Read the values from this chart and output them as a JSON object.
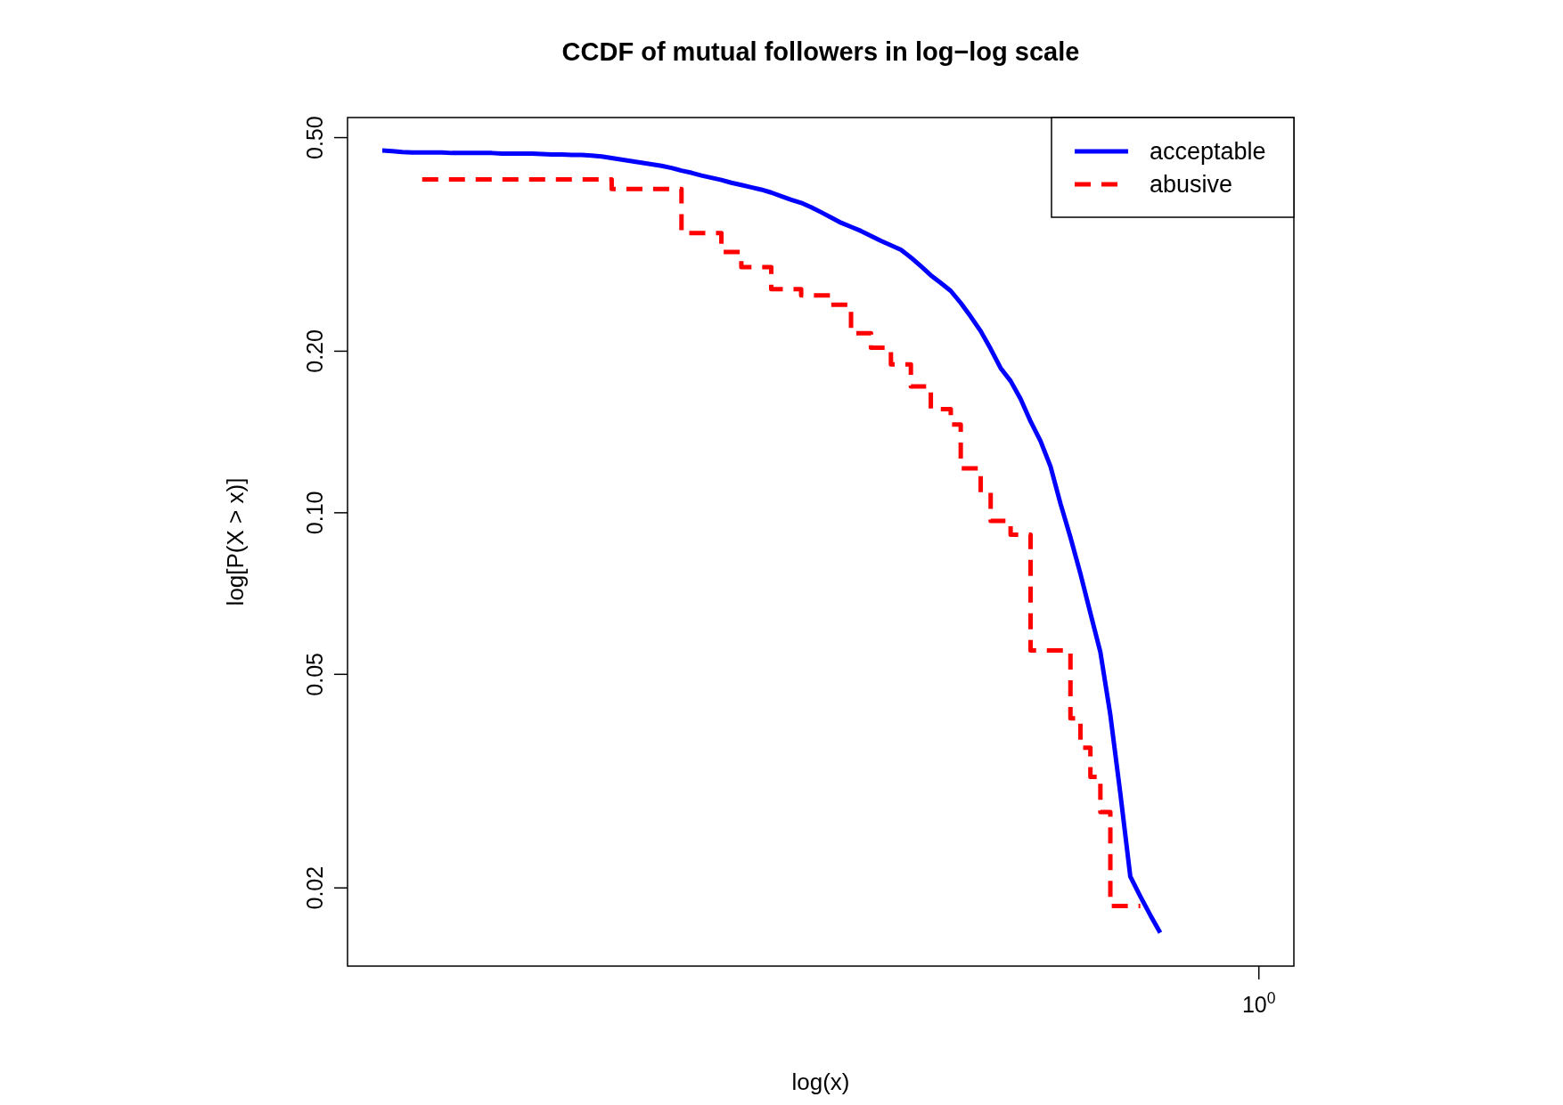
{
  "chart_data": {
    "type": "line",
    "title": "CCDF of mutual followers in log−log scale",
    "xlabel": "log(x)",
    "ylabel": "log[P(X > x)]",
    "log": "y",
    "tick_labels": "y",
    "annotations": [
      "10$^{0}$"
    ],
    "ylim": [
      0.0143,
      0.545
    ],
    "yticks": [
      {
        "value": 0.5,
        "label": "0.50"
      },
      {
        "value": 0.2,
        "label": "0.20"
      },
      {
        "value": 0.1,
        "label": "0.10"
      },
      {
        "value": 0.05,
        "label": "0.05"
      },
      {
        "value": 0.02,
        "label": "0.02"
      }
    ],
    "legend": "top right",
    "categories": [
      null,
      null,
      null,
      null,
      null,
      null,
      null,
      null,
      null,
      null,
      null,
      null,
      null,
      null,
      null,
      null,
      null,
      null,
      null,
      null,
      null,
      null,
      null,
      null,
      null,
      null,
      null,
      null,
      null,
      null,
      null,
      null,
      null,
      null,
      null,
      null,
      null,
      null,
      null,
      null,
      null,
      null,
      null,
      null,
      null,
      null,
      null,
      null,
      null,
      null,
      null,
      null,
      null,
      null,
      null,
      null,
      null,
      null,
      null,
      null,
      null,
      null,
      null,
      null,
      null,
      null,
      null,
      null,
      null,
      null,
      null,
      null,
      null,
      null,
      null,
      null,
      null,
      null,
      null
    ],
    "series": [
      {
        "name": "acceptable",
        "color": "#0000ff",
        "line_style": "solid",
        "type": "line",
        "values": [
          0.473,
          0.472,
          0.47,
          0.469,
          0.469,
          0.469,
          0.469,
          0.468,
          0.468,
          0.468,
          0.468,
          0.468,
          0.467,
          0.467,
          0.467,
          0.467,
          0.466,
          0.465,
          0.465,
          0.464,
          0.464,
          0.463,
          0.461,
          0.458,
          0.455,
          0.452,
          0.449,
          0.446,
          0.443,
          0.439,
          0.434,
          0.43,
          0.425,
          0.421,
          0.417,
          0.412,
          0.408,
          0.404,
          0.4,
          0.395,
          0.389,
          0.383,
          0.378,
          0.371,
          0.363,
          0.355,
          0.347,
          0.341,
          0.335,
          0.328,
          0.321,
          0.315,
          0.309,
          0.299,
          0.288,
          0.277,
          0.268,
          0.259,
          0.246,
          0.232,
          0.218,
          0.202,
          0.186,
          0.176,
          0.163,
          0.148,
          0.136,
          0.122,
          0.104,
          0.09,
          0.077,
          0.065,
          0.055,
          0.042,
          0.03,
          0.021,
          0.0193,
          0.0178,
          0.0165
        ]
      },
      {
        "name": "abusive",
        "color": "#ff0000",
        "line_style": "dashed",
        "type": "step",
        "values": [
          null,
          null,
          null,
          null,
          0.418,
          0.418,
          0.418,
          0.418,
          0.418,
          0.418,
          0.418,
          0.418,
          0.418,
          0.418,
          0.418,
          0.418,
          0.418,
          0.418,
          0.418,
          0.418,
          0.418,
          0.418,
          0.418,
          0.401,
          0.401,
          0.401,
          0.401,
          0.401,
          0.401,
          0.401,
          0.332,
          0.332,
          0.332,
          0.332,
          0.306,
          0.306,
          0.287,
          0.287,
          0.287,
          0.261,
          0.261,
          0.261,
          0.254,
          0.254,
          0.254,
          0.244,
          0.244,
          0.216,
          0.216,
          0.203,
          0.203,
          0.189,
          0.189,
          0.172,
          0.172,
          0.156,
          0.156,
          0.146,
          0.121,
          0.121,
          0.109,
          0.0966,
          0.0966,
          0.091,
          0.091,
          0.0554,
          0.0554,
          0.0554,
          0.0554,
          0.0414,
          0.0365,
          0.0322,
          0.0277,
          0.0185,
          0.0185,
          0.0185,
          0.0185,
          null,
          null
        ]
      }
    ]
  }
}
